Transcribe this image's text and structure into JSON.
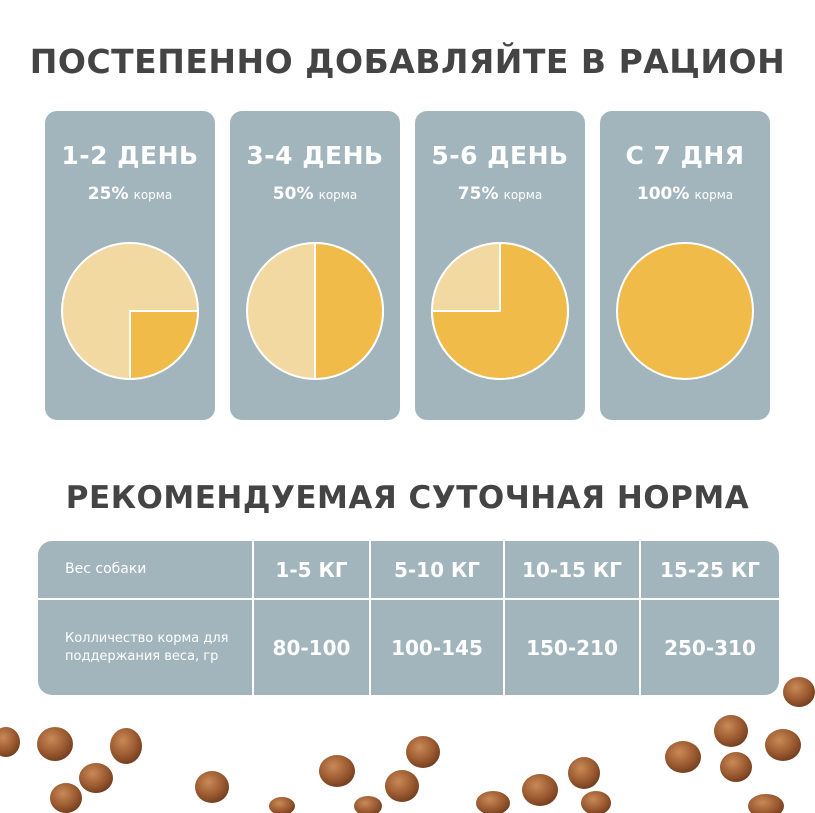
{
  "headings": {
    "stages": "ПОСТЕПЕННО ДОБАВЛЯЙТЕ В РАЦИОН",
    "norm": "РЕКОМЕНДУЕМАЯ СУТОЧНАЯ НОРМА"
  },
  "stages": [
    {
      "day": "1-2 ДЕНЬ",
      "percent": "25%",
      "unit": "корма",
      "fraction": 0.25
    },
    {
      "day": "3-4 ДЕНЬ",
      "percent": "50%",
      "unit": "корма",
      "fraction": 0.5
    },
    {
      "day": "5-6 ДЕНЬ",
      "percent": "75%",
      "unit": "корма",
      "fraction": 0.75
    },
    {
      "day": "С 7 ДНЯ",
      "percent": "100%",
      "unit": "корма",
      "fraction": 1.0
    }
  ],
  "colors": {
    "card_bg": "#a2b5bd",
    "new_food": "#f0bb48",
    "old_food": "#f2d9a2",
    "heading": "#444444"
  },
  "table": {
    "row_weight_label": "Вес собаки",
    "row_amount_label": "Колличество корма для поддержания веса, гр",
    "columns": [
      {
        "weight": "1-5 КГ",
        "amount": "80-100"
      },
      {
        "weight": "5-10 КГ",
        "amount": "100-145"
      },
      {
        "weight": "10-15 КГ",
        "amount": "150-210"
      },
      {
        "weight": "15-25 КГ",
        "amount": "250-310"
      }
    ]
  }
}
